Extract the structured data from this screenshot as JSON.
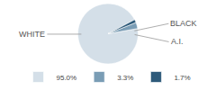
{
  "chart_data": {
    "type": "pie",
    "categories": [
      "WHITE",
      "A.I.",
      "BLACK"
    ],
    "values": [
      95.0,
      3.3,
      1.7
    ],
    "value_labels": [
      "95.0%",
      "3.3%",
      "1.7%"
    ],
    "colors": [
      "#d4dfe8",
      "#7a9db5",
      "#2d5a7a"
    ],
    "legend": "bottom"
  }
}
